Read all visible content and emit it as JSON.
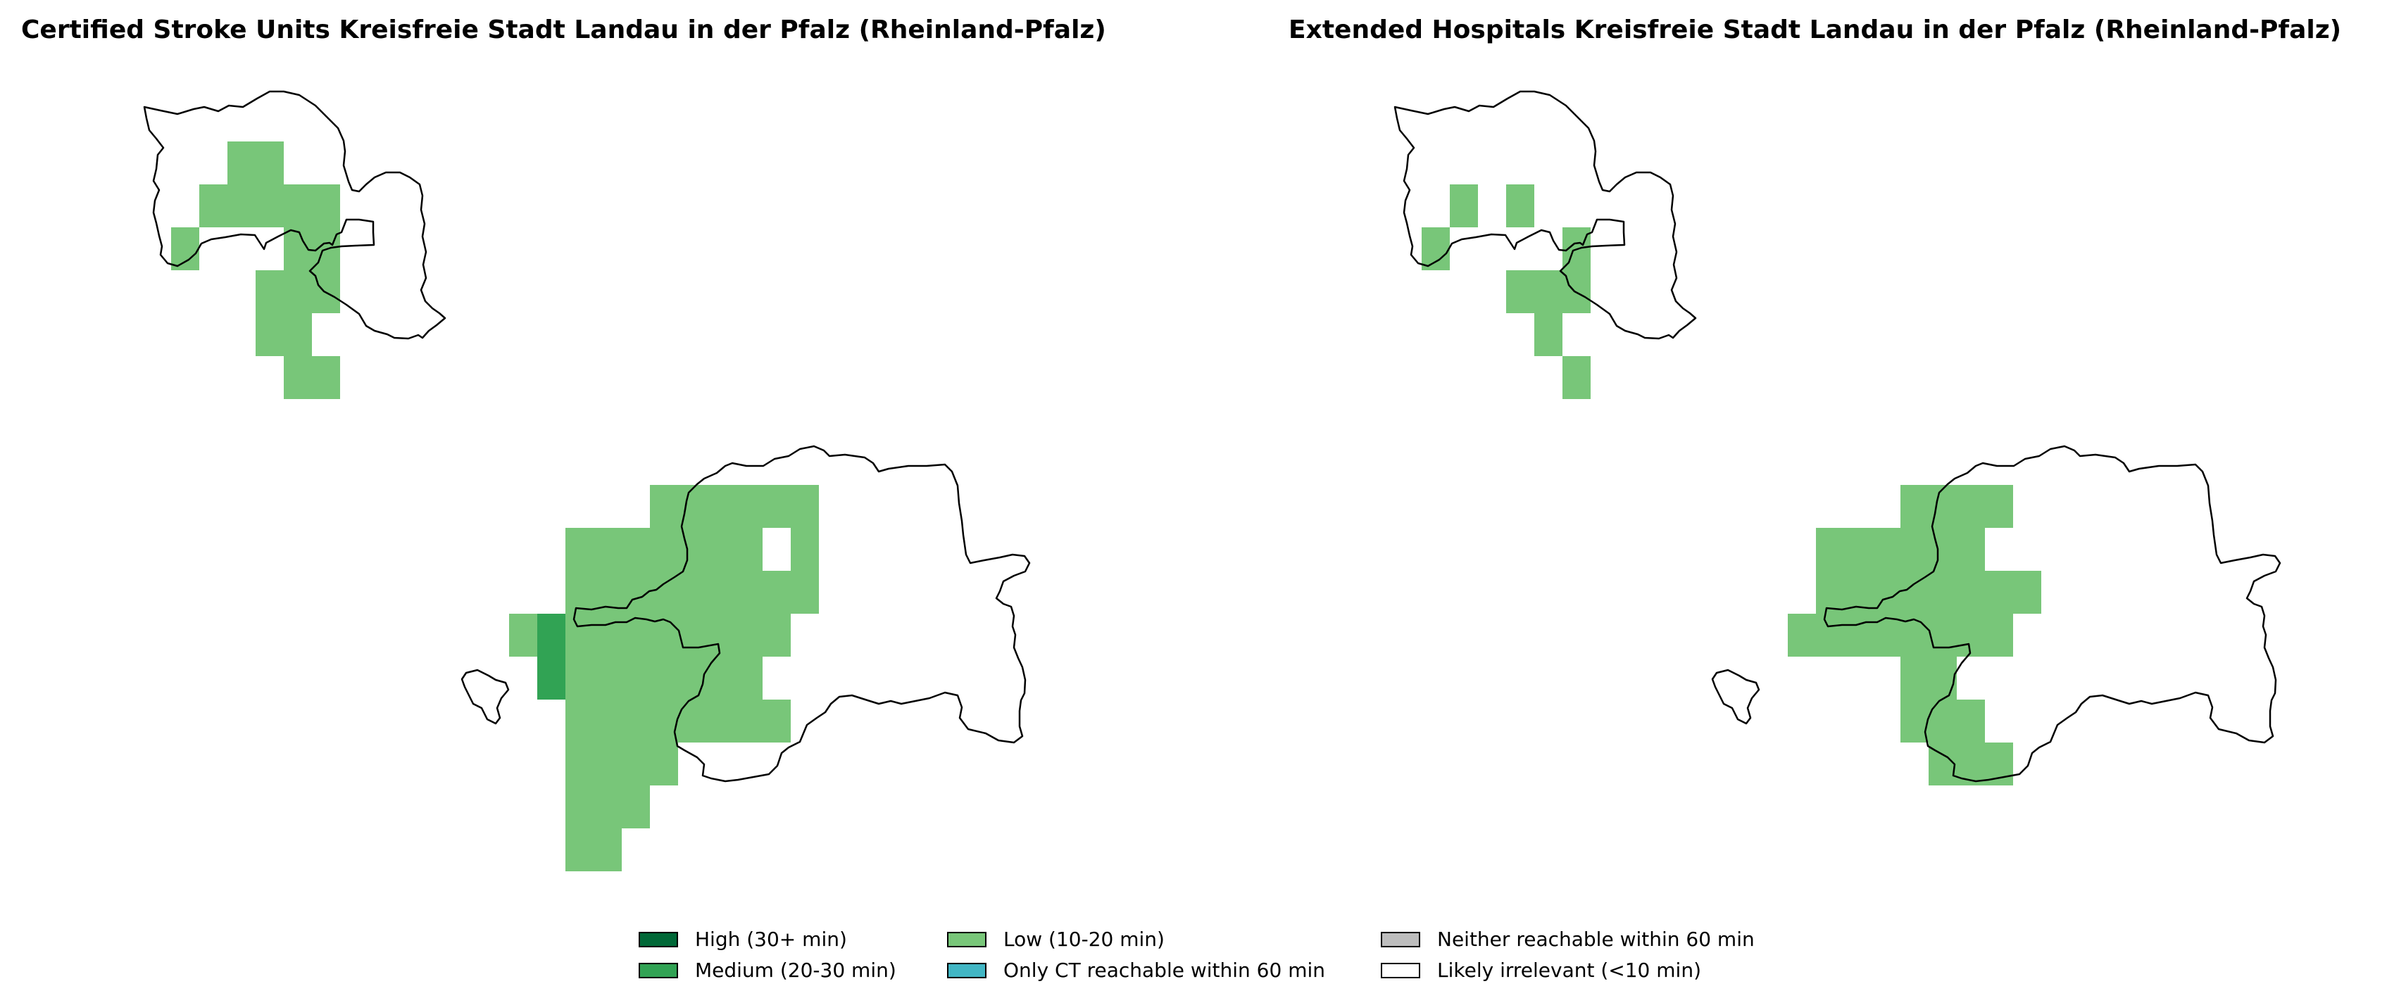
{
  "titles": {
    "left": "Certified Stroke Units Kreisfreie Stadt Landau in der Pfalz (Rheinland-Pfalz)",
    "right": "Extended Hospitals Kreisfreie Stadt Landau in der Pfalz (Rheinland-Pfalz)"
  },
  "colors": {
    "high": "#006837",
    "medium": "#31a354",
    "low": "#78c679",
    "only_ct": "#41b6c4",
    "neither": "#bdbdbd",
    "irrelevant": "#ffffff"
  },
  "legend": [
    {
      "key": "high",
      "label": "High (30+ min)",
      "color": "#006837"
    },
    {
      "key": "medium",
      "label": "Medium (20-30 min)",
      "color": "#31a354"
    },
    {
      "key": "low",
      "label": "Low (10-20 min)",
      "color": "#78c679"
    },
    {
      "key": "only_ct",
      "label": "Only CT reachable within 60 min",
      "color": "#41b6c4"
    },
    {
      "key": "neither",
      "label": "Neither reachable within 60 min",
      "color": "#bdbdbd"
    },
    {
      "key": "irrelevant",
      "label": "Likely irrelevant (<10 min)",
      "color": "#ffffff"
    }
  ],
  "grids": {
    "left": [
      {
        "col": 4,
        "row": 1,
        "cat": "low"
      },
      {
        "col": 5,
        "row": 1,
        "cat": "low"
      },
      {
        "col": 3,
        "row": 2,
        "cat": "low"
      },
      {
        "col": 4,
        "row": 2,
        "cat": "low"
      },
      {
        "col": 5,
        "row": 2,
        "cat": "low"
      },
      {
        "col": 6,
        "row": 2,
        "cat": "low"
      },
      {
        "col": 7,
        "row": 2,
        "cat": "low"
      },
      {
        "col": 2,
        "row": 3,
        "cat": "low"
      },
      {
        "col": 6,
        "row": 3,
        "cat": "low"
      },
      {
        "col": 7,
        "row": 3,
        "cat": "low"
      },
      {
        "col": 5,
        "row": 4,
        "cat": "low"
      },
      {
        "col": 6,
        "row": 4,
        "cat": "low"
      },
      {
        "col": 7,
        "row": 4,
        "cat": "low"
      },
      {
        "col": 5,
        "row": 5,
        "cat": "low"
      },
      {
        "col": 6,
        "row": 5,
        "cat": "low"
      },
      {
        "col": 6,
        "row": 6,
        "cat": "low"
      },
      {
        "col": 7,
        "row": 6,
        "cat": "low"
      },
      {
        "col": 19,
        "row": 9,
        "cat": "low"
      },
      {
        "col": 20,
        "row": 9,
        "cat": "low"
      },
      {
        "col": 21,
        "row": 9,
        "cat": "low"
      },
      {
        "col": 22,
        "row": 9,
        "cat": "low"
      },
      {
        "col": 23,
        "row": 9,
        "cat": "low"
      },
      {
        "col": 24,
        "row": 9,
        "cat": "low"
      },
      {
        "col": 16,
        "row": 10,
        "cat": "low"
      },
      {
        "col": 17,
        "row": 10,
        "cat": "low"
      },
      {
        "col": 18,
        "row": 10,
        "cat": "low"
      },
      {
        "col": 19,
        "row": 10,
        "cat": "low"
      },
      {
        "col": 20,
        "row": 10,
        "cat": "low"
      },
      {
        "col": 21,
        "row": 10,
        "cat": "low"
      },
      {
        "col": 22,
        "row": 10,
        "cat": "low"
      },
      {
        "col": 24,
        "row": 10,
        "cat": "low"
      },
      {
        "col": 16,
        "row": 11,
        "cat": "low"
      },
      {
        "col": 17,
        "row": 11,
        "cat": "low"
      },
      {
        "col": 18,
        "row": 11,
        "cat": "low"
      },
      {
        "col": 19,
        "row": 11,
        "cat": "low"
      },
      {
        "col": 20,
        "row": 11,
        "cat": "low"
      },
      {
        "col": 21,
        "row": 11,
        "cat": "low"
      },
      {
        "col": 22,
        "row": 11,
        "cat": "low"
      },
      {
        "col": 23,
        "row": 11,
        "cat": "low"
      },
      {
        "col": 24,
        "row": 11,
        "cat": "low"
      },
      {
        "col": 14,
        "row": 12,
        "cat": "low"
      },
      {
        "col": 15,
        "row": 12,
        "cat": "medium"
      },
      {
        "col": 16,
        "row": 12,
        "cat": "low"
      },
      {
        "col": 17,
        "row": 12,
        "cat": "low"
      },
      {
        "col": 18,
        "row": 12,
        "cat": "low"
      },
      {
        "col": 19,
        "row": 12,
        "cat": "low"
      },
      {
        "col": 20,
        "row": 12,
        "cat": "low"
      },
      {
        "col": 21,
        "row": 12,
        "cat": "low"
      },
      {
        "col": 22,
        "row": 12,
        "cat": "low"
      },
      {
        "col": 23,
        "row": 12,
        "cat": "low"
      },
      {
        "col": 15,
        "row": 13,
        "cat": "medium"
      },
      {
        "col": 16,
        "row": 13,
        "cat": "low"
      },
      {
        "col": 17,
        "row": 13,
        "cat": "low"
      },
      {
        "col": 18,
        "row": 13,
        "cat": "low"
      },
      {
        "col": 19,
        "row": 13,
        "cat": "low"
      },
      {
        "col": 20,
        "row": 13,
        "cat": "low"
      },
      {
        "col": 21,
        "row": 13,
        "cat": "low"
      },
      {
        "col": 22,
        "row": 13,
        "cat": "low"
      },
      {
        "col": 16,
        "row": 14,
        "cat": "low"
      },
      {
        "col": 17,
        "row": 14,
        "cat": "low"
      },
      {
        "col": 18,
        "row": 14,
        "cat": "low"
      },
      {
        "col": 19,
        "row": 14,
        "cat": "low"
      },
      {
        "col": 20,
        "row": 14,
        "cat": "low"
      },
      {
        "col": 21,
        "row": 14,
        "cat": "low"
      },
      {
        "col": 22,
        "row": 14,
        "cat": "low"
      },
      {
        "col": 23,
        "row": 14,
        "cat": "low"
      },
      {
        "col": 16,
        "row": 15,
        "cat": "low"
      },
      {
        "col": 17,
        "row": 15,
        "cat": "low"
      },
      {
        "col": 18,
        "row": 15,
        "cat": "low"
      },
      {
        "col": 19,
        "row": 15,
        "cat": "low"
      },
      {
        "col": 16,
        "row": 16,
        "cat": "low"
      },
      {
        "col": 17,
        "row": 16,
        "cat": "low"
      },
      {
        "col": 18,
        "row": 16,
        "cat": "low"
      },
      {
        "col": 16,
        "row": 17,
        "cat": "low"
      },
      {
        "col": 17,
        "row": 17,
        "cat": "low"
      }
    ],
    "right": [
      {
        "col": 3,
        "row": 2,
        "cat": "low"
      },
      {
        "col": 5,
        "row": 2,
        "cat": "low"
      },
      {
        "col": 2,
        "row": 3,
        "cat": "low"
      },
      {
        "col": 7,
        "row": 3,
        "cat": "low"
      },
      {
        "col": 5,
        "row": 4,
        "cat": "low"
      },
      {
        "col": 6,
        "row": 4,
        "cat": "low"
      },
      {
        "col": 7,
        "row": 4,
        "cat": "low"
      },
      {
        "col": 6,
        "row": 5,
        "cat": "low"
      },
      {
        "col": 7,
        "row": 6,
        "cat": "low"
      },
      {
        "col": 19,
        "row": 9,
        "cat": "low"
      },
      {
        "col": 20,
        "row": 9,
        "cat": "low"
      },
      {
        "col": 21,
        "row": 9,
        "cat": "low"
      },
      {
        "col": 22,
        "row": 9,
        "cat": "low"
      },
      {
        "col": 16,
        "row": 10,
        "cat": "low"
      },
      {
        "col": 17,
        "row": 10,
        "cat": "low"
      },
      {
        "col": 18,
        "row": 10,
        "cat": "low"
      },
      {
        "col": 19,
        "row": 10,
        "cat": "low"
      },
      {
        "col": 20,
        "row": 10,
        "cat": "low"
      },
      {
        "col": 21,
        "row": 10,
        "cat": "low"
      },
      {
        "col": 16,
        "row": 11,
        "cat": "low"
      },
      {
        "col": 17,
        "row": 11,
        "cat": "low"
      },
      {
        "col": 18,
        "row": 11,
        "cat": "low"
      },
      {
        "col": 19,
        "row": 11,
        "cat": "low"
      },
      {
        "col": 20,
        "row": 11,
        "cat": "low"
      },
      {
        "col": 21,
        "row": 11,
        "cat": "low"
      },
      {
        "col": 22,
        "row": 11,
        "cat": "low"
      },
      {
        "col": 23,
        "row": 11,
        "cat": "low"
      },
      {
        "col": 15,
        "row": 12,
        "cat": "low"
      },
      {
        "col": 16,
        "row": 12,
        "cat": "low"
      },
      {
        "col": 17,
        "row": 12,
        "cat": "low"
      },
      {
        "col": 18,
        "row": 12,
        "cat": "low"
      },
      {
        "col": 19,
        "row": 12,
        "cat": "low"
      },
      {
        "col": 20,
        "row": 12,
        "cat": "low"
      },
      {
        "col": 21,
        "row": 12,
        "cat": "low"
      },
      {
        "col": 22,
        "row": 12,
        "cat": "low"
      },
      {
        "col": 19,
        "row": 13,
        "cat": "low"
      },
      {
        "col": 20,
        "row": 13,
        "cat": "low"
      },
      {
        "col": 19,
        "row": 14,
        "cat": "low"
      },
      {
        "col": 20,
        "row": 14,
        "cat": "low"
      },
      {
        "col": 21,
        "row": 14,
        "cat": "low"
      },
      {
        "col": 20,
        "row": 15,
        "cat": "low"
      },
      {
        "col": 21,
        "row": 15,
        "cat": "low"
      },
      {
        "col": 22,
        "row": 15,
        "cat": "low"
      }
    ]
  }
}
